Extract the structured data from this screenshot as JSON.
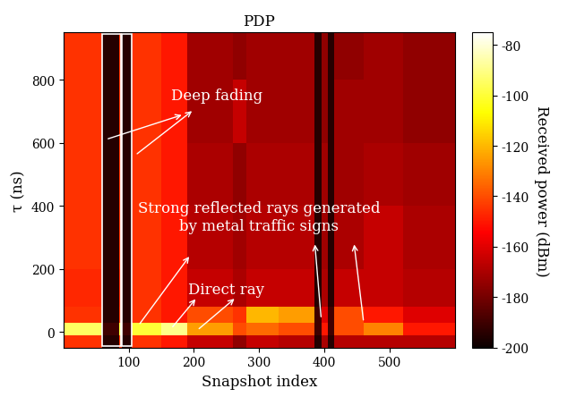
{
  "chart_data": {
    "type": "heatmap",
    "title": "PDP",
    "x_label": "Snapshot index",
    "y_label": "τ (ns)",
    "x_edges": [
      0,
      60,
      85,
      90,
      105,
      150,
      190,
      260,
      280,
      330,
      385,
      395,
      405,
      415,
      460,
      520,
      600
    ],
    "y_edges": [
      -50,
      -10,
      30,
      80,
      200,
      400,
      600,
      800,
      950
    ],
    "cells": [
      [
        -145,
        -195,
        -145,
        -195,
        -145,
        -150,
        -165,
        -175,
        -165,
        -168,
        -195,
        -170,
        -195,
        -168,
        -168,
        -168
      ],
      [
        -95,
        -190,
        -100,
        -190,
        -100,
        -90,
        -125,
        -140,
        -135,
        -140,
        -190,
        -150,
        -190,
        -140,
        -130,
        -150
      ],
      [
        -145,
        -195,
        -145,
        -195,
        -145,
        -150,
        -140,
        -145,
        -120,
        -125,
        -190,
        -160,
        -190,
        -140,
        -150,
        -160
      ],
      [
        -147,
        -195,
        -147,
        -195,
        -145,
        -150,
        -165,
        -170,
        -165,
        -165,
        -195,
        -170,
        -195,
        -165,
        -165,
        -168
      ],
      [
        -145,
        -195,
        -145,
        -195,
        -145,
        -150,
        -168,
        -172,
        -168,
        -168,
        -195,
        -172,
        -195,
        -170,
        -165,
        -170
      ],
      [
        -145,
        -195,
        -145,
        -195,
        -145,
        -150,
        -170,
        -175,
        -170,
        -170,
        -195,
        -172,
        -195,
        -172,
        -170,
        -172
      ],
      [
        -145,
        -195,
        -145,
        -195,
        -145,
        -150,
        -172,
        -165,
        -172,
        -172,
        -195,
        -175,
        -195,
        -172,
        -172,
        -175
      ],
      [
        -145,
        -195,
        -145,
        -195,
        -145,
        -150,
        -172,
        -175,
        -172,
        -172,
        -195,
        -175,
        -195,
        -175,
        -172,
        -175
      ]
    ],
    "xlim": [
      0,
      600
    ],
    "xticks": [
      100,
      200,
      300,
      400,
      500
    ],
    "ylim": [
      -50,
      950
    ],
    "yticks": [
      0,
      200,
      400,
      600,
      800
    ],
    "colorbar": {
      "label": "Received power (dBm)",
      "range": [
        -200,
        -75
      ],
      "ticks": [
        -80,
        -100,
        -120,
        -140,
        -160,
        -180,
        -200
      ]
    },
    "annotations": [
      "Deep fading",
      "Strong reflected rays generated\nby metal traffic signs",
      "Direct ray"
    ]
  }
}
